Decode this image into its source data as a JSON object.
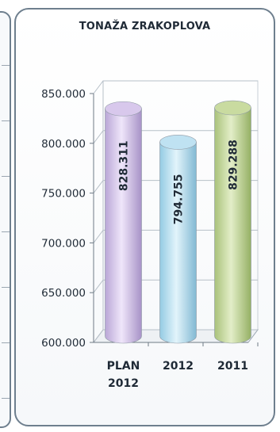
{
  "chart_data": {
    "type": "bar",
    "title": "TONAŽA ZRAKOPLOVA",
    "xlabel": "",
    "ylabel": "",
    "categories": [
      [
        "PLAN",
        "2012"
      ],
      [
        "2012"
      ],
      [
        "2011"
      ]
    ],
    "values": [
      828311,
      794755,
      829288
    ],
    "value_labels": [
      "828.311",
      "794.755",
      "829.288"
    ],
    "yticks": [
      600000,
      650000,
      700000,
      750000,
      800000,
      850000
    ],
    "ytick_labels": [
      "600.000",
      "650.000",
      "700.000",
      "750.000",
      "800.000",
      "850.000"
    ],
    "ylim": [
      600000,
      850000
    ],
    "grid": true,
    "style": "3d-cylinder",
    "colors": [
      "#d8c8ec",
      "#bfe2f2",
      "#c9dba0"
    ]
  }
}
